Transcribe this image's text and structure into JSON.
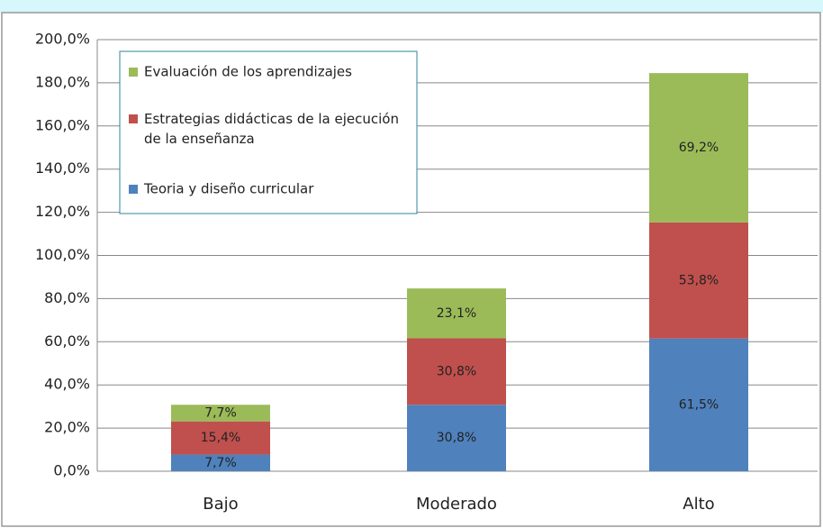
{
  "chart_data": {
    "type": "stacked_bar",
    "categories": [
      "Bajo",
      "Moderado",
      "Alto"
    ],
    "series": [
      {
        "name": "Teoria y diseño curricular",
        "color": "#4f81bd",
        "values": [
          7.7,
          30.8,
          61.5
        ],
        "value_labels": [
          "7,7%",
          "30,8%",
          "61,5%"
        ]
      },
      {
        "name": "Estrategias didácticas de la ejecución de la enseñanza",
        "color": "#c0504d",
        "values": [
          15.4,
          30.8,
          53.8
        ],
        "value_labels": [
          "15,4%",
          "30,8%",
          "53,8%"
        ]
      },
      {
        "name": "Evaluación de los aprendizajes",
        "color": "#9bbb59",
        "values": [
          7.7,
          23.1,
          69.2
        ],
        "value_labels": [
          "7,7%",
          "23,1%",
          "69,2%"
        ]
      }
    ],
    "ylim": [
      0,
      200
    ],
    "yticks": [
      {
        "value": 0,
        "label": "0,0%"
      },
      {
        "value": 20,
        "label": "20,0%"
      },
      {
        "value": 40,
        "label": "40,0%"
      },
      {
        "value": 60,
        "label": "60,0%"
      },
      {
        "value": 80,
        "label": "80,0%"
      },
      {
        "value": 100,
        "label": "100,0%"
      },
      {
        "value": 120,
        "label": "120,0%"
      },
      {
        "value": 140,
        "label": "140,0%"
      },
      {
        "value": 160,
        "label": "160,0%"
      },
      {
        "value": 180,
        "label": "180,0%"
      },
      {
        "value": 200,
        "label": "200,0%"
      }
    ],
    "grid": true,
    "legend": "top-left"
  }
}
